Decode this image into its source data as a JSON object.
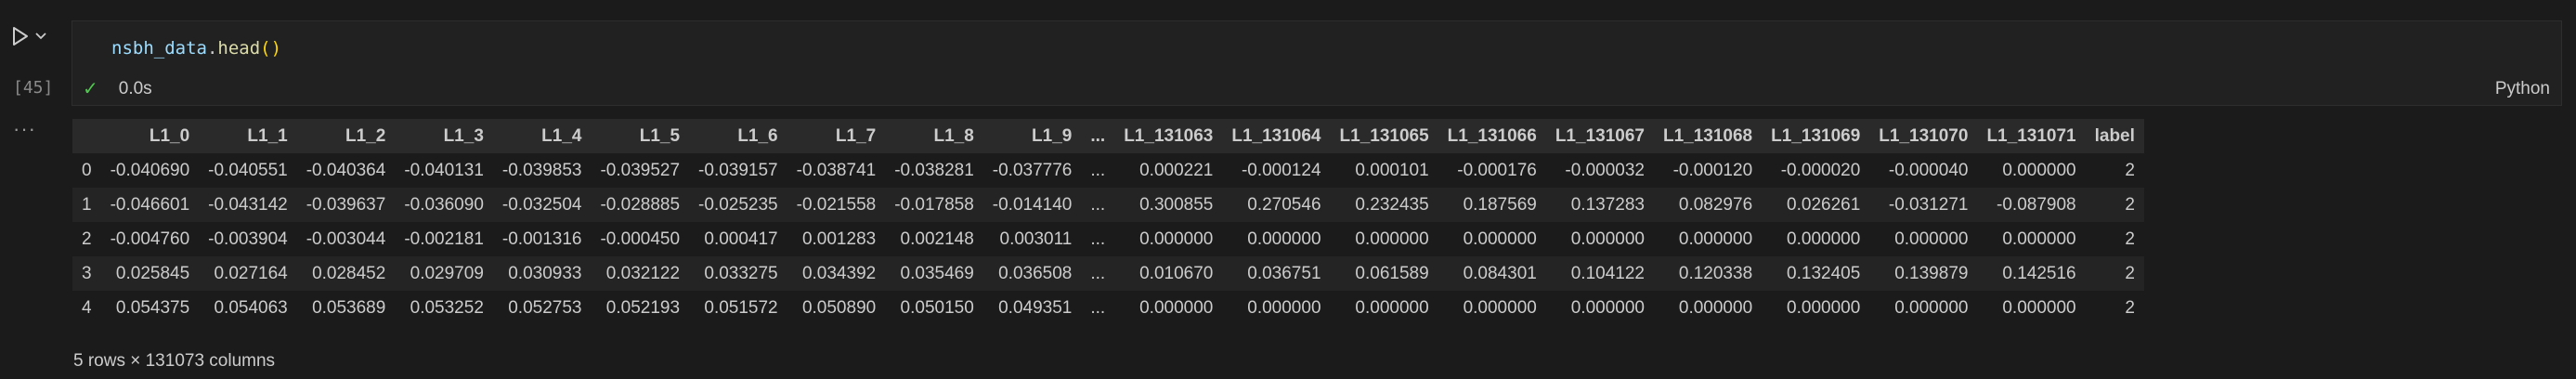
{
  "cell": {
    "execution_count": "[45]",
    "code": {
      "variable": "nsbh_data",
      "dot": ".",
      "method": "head",
      "parens": "()"
    },
    "status_time": "0.0s",
    "language": "Python",
    "output_more": "···"
  },
  "dataframe": {
    "columns": [
      "",
      "L1_0",
      "L1_1",
      "L1_2",
      "L1_3",
      "L1_4",
      "L1_5",
      "L1_6",
      "L1_7",
      "L1_8",
      "L1_9",
      "...",
      "L1_131063",
      "L1_131064",
      "L1_131065",
      "L1_131066",
      "L1_131067",
      "L1_131068",
      "L1_131069",
      "L1_131070",
      "L1_131071",
      "label"
    ],
    "rows": [
      [
        "0",
        "-0.040690",
        "-0.040551",
        "-0.040364",
        "-0.040131",
        "-0.039853",
        "-0.039527",
        "-0.039157",
        "-0.038741",
        "-0.038281",
        "-0.037776",
        "...",
        "0.000221",
        "-0.000124",
        "0.000101",
        "-0.000176",
        "-0.000032",
        "-0.000120",
        "-0.000020",
        "-0.000040",
        "0.000000",
        "2"
      ],
      [
        "1",
        "-0.046601",
        "-0.043142",
        "-0.039637",
        "-0.036090",
        "-0.032504",
        "-0.028885",
        "-0.025235",
        "-0.021558",
        "-0.017858",
        "-0.014140",
        "...",
        "0.300855",
        "0.270546",
        "0.232435",
        "0.187569",
        "0.137283",
        "0.082976",
        "0.026261",
        "-0.031271",
        "-0.087908",
        "2"
      ],
      [
        "2",
        "-0.004760",
        "-0.003904",
        "-0.003044",
        "-0.002181",
        "-0.001316",
        "-0.000450",
        "0.000417",
        "0.001283",
        "0.002148",
        "0.003011",
        "...",
        "0.000000",
        "0.000000",
        "0.000000",
        "0.000000",
        "0.000000",
        "0.000000",
        "0.000000",
        "0.000000",
        "0.000000",
        "2"
      ],
      [
        "3",
        "0.025845",
        "0.027164",
        "0.028452",
        "0.029709",
        "0.030933",
        "0.032122",
        "0.033275",
        "0.034392",
        "0.035469",
        "0.036508",
        "...",
        "0.010670",
        "0.036751",
        "0.061589",
        "0.084301",
        "0.104122",
        "0.120338",
        "0.132405",
        "0.139879",
        "0.142516",
        "2"
      ],
      [
        "4",
        "0.054375",
        "0.054063",
        "0.053689",
        "0.053252",
        "0.052753",
        "0.052193",
        "0.051572",
        "0.050890",
        "0.050150",
        "0.049351",
        "...",
        "0.000000",
        "0.000000",
        "0.000000",
        "0.000000",
        "0.000000",
        "0.000000",
        "0.000000",
        "0.000000",
        "0.000000",
        "2"
      ]
    ],
    "shape_note": "5 rows × 131073 columns"
  },
  "colors": {
    "background": "#1b1b1c",
    "success": "#4ec94e",
    "code_variable": "#9cdcfe",
    "code_function": "#dcdcaa",
    "code_paren": "#ffd700"
  },
  "icons": [
    "run-cell-icon",
    "chevron-down-icon",
    "check-icon",
    "more-actions-icon"
  ]
}
